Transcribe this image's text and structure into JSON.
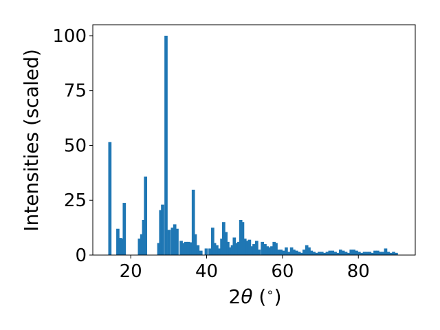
{
  "chart_data": {
    "type": "bar",
    "xlabel_parts": [
      "2",
      "θ",
      " (",
      "∘",
      ")"
    ],
    "ylabel": "Intensities (scaled)",
    "xlim": [
      10,
      95
    ],
    "ylim": [
      0,
      105
    ],
    "xticks": [
      20,
      40,
      60,
      80
    ],
    "xtick_labels": [
      "20",
      "40",
      "60",
      "80"
    ],
    "yticks": [
      0,
      25,
      50,
      75,
      100
    ],
    "ytick_labels": [
      "0",
      "25",
      "50",
      "75",
      "100"
    ],
    "bar_width": 0.85,
    "grid": false,
    "bar_color": "#1f77b4",
    "x": [
      14.5,
      16.6,
      17.3,
      17.8,
      18.3,
      22.3,
      22.9,
      23.4,
      23.9,
      27.4,
      27.9,
      28.4,
      29.3,
      30.1,
      31.0,
      31.6,
      32.2,
      33.3,
      33.8,
      34.5,
      35.2,
      35.9,
      36.5,
      37.0,
      37.7,
      38.5,
      39.9,
      40.9,
      41.6,
      42.1,
      42.7,
      43.4,
      44.0,
      44.5,
      45.1,
      45.6,
      46.2,
      46.8,
      47.3,
      47.9,
      48.5,
      49.0,
      49.5,
      50.1,
      50.7,
      51.3,
      51.9,
      52.5,
      53.2,
      53.8,
      54.7,
      55.4,
      56.0,
      56.6,
      57.2,
      57.8,
      58.3,
      58.9,
      59.6,
      60.3,
      61.0,
      61.8,
      62.4,
      63.0,
      63.7,
      64.4,
      65.0,
      65.7,
      66.4,
      67.0,
      67.6,
      68.3,
      69.0,
      69.7,
      70.4,
      71.1,
      71.8,
      72.5,
      73.2,
      73.9,
      74.6,
      75.3,
      76.0,
      76.7,
      77.4,
      78.1,
      78.8,
      79.5,
      80.2,
      80.9,
      81.6,
      82.3,
      83.0,
      83.7,
      84.4,
      85.1,
      85.8,
      86.5,
      87.2,
      87.9,
      88.6,
      89.3,
      90.0
    ],
    "values": [
      51.5,
      12.0,
      7.8,
      7.5,
      23.8,
      7.5,
      9.5,
      16.0,
      35.8,
      5.5,
      20.5,
      23.0,
      100.0,
      11.5,
      12.5,
      14.0,
      12.0,
      6.5,
      5.5,
      6.0,
      6.0,
      5.8,
      29.8,
      9.5,
      4.5,
      2.0,
      3.0,
      3.0,
      12.5,
      5.5,
      4.5,
      3.0,
      7.5,
      15.0,
      10.5,
      6.0,
      3.5,
      4.5,
      8.0,
      5.5,
      6.0,
      16.0,
      15.0,
      7.5,
      6.5,
      7.0,
      4.0,
      5.0,
      6.5,
      2.5,
      6.0,
      5.0,
      4.0,
      3.5,
      4.0,
      6.0,
      5.5,
      2.5,
      2.5,
      2.0,
      3.5,
      1.5,
      3.5,
      2.5,
      2.0,
      1.5,
      1.0,
      2.5,
      4.5,
      3.5,
      2.0,
      1.5,
      1.0,
      1.5,
      1.5,
      1.0,
      1.5,
      2.0,
      2.0,
      1.5,
      1.0,
      2.5,
      2.0,
      1.5,
      1.0,
      2.5,
      2.5,
      2.0,
      1.5,
      1.0,
      1.5,
      1.5,
      1.5,
      1.0,
      2.0,
      2.0,
      1.5,
      1.5,
      3.0,
      1.5,
      1.0,
      1.5,
      1.0
    ]
  }
}
